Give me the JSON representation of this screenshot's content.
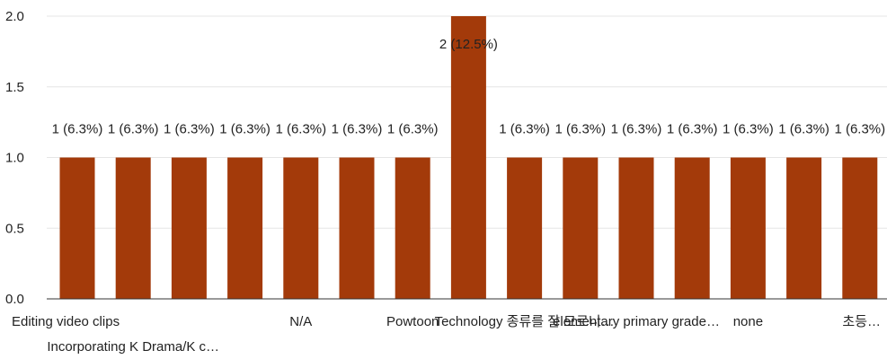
{
  "chart_data": {
    "type": "bar",
    "categories": [
      "Editing video clips",
      "Incorporating K Drama/K c…",
      "",
      "",
      "N/A",
      "",
      "Powtoon",
      "",
      "Technology 종류를 잘 모르니…",
      "",
      "elementary primary grade…",
      "",
      "none",
      "",
      "초등…"
    ],
    "values": [
      1,
      1,
      1,
      1,
      1,
      1,
      1,
      2,
      1,
      1,
      1,
      1,
      1,
      1,
      1
    ],
    "data_labels": [
      "1 (6.3%)",
      "1 (6.3%)",
      "1 (6.3%)",
      "1 (6.3%)",
      "1 (6.3%)",
      "1 (6.3%)",
      "1 (6.3%)",
      "2 (12.5%)",
      "1 (6.3%)",
      "1 (6.3%)",
      "1 (6.3%)",
      "1 (6.3%)",
      "1 (6.3%)",
      "1 (6.3%)",
      "1 (6.3%)"
    ],
    "y_ticks": [
      "0.0",
      "0.5",
      "1.0",
      "1.5",
      "2.0"
    ],
    "ylim": [
      0,
      2
    ],
    "grid": true,
    "bar_color": "#a33a0a"
  }
}
